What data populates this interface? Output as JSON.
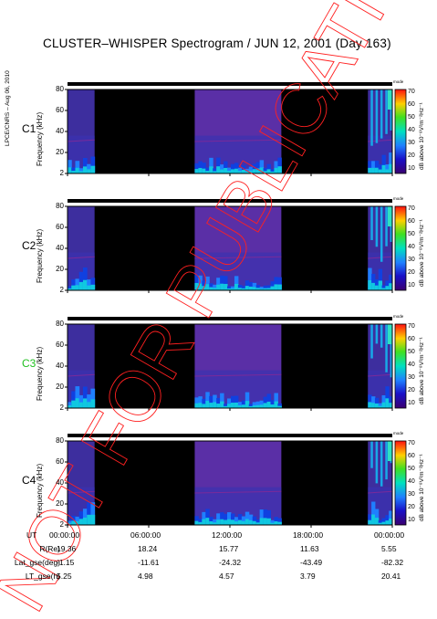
{
  "title": "CLUSTER–WHISPER Spectrogram / JUN 12, 2001 (Day 163)",
  "credit": "LPCE/CNRS – Aug 06, 2010",
  "watermark": "NOT FOR PUBLICATION",
  "colors": {
    "watermark": "#ff2020",
    "c3_label": "#21c021",
    "gap": "#000000"
  },
  "chart_data": {
    "type": "heatmap",
    "panels": [
      {
        "name": "C1",
        "ylabel": "Frequency (kHz)",
        "yticks": [
          "80",
          "60",
          "40",
          "20",
          "2"
        ],
        "ylim": [
          2,
          80
        ],
        "cbar_label": "dB above 10⁻⁸V²m⁻²Hz⁻¹",
        "cbar_ticks": [
          "70",
          "60",
          "50",
          "40",
          "30",
          "20",
          "10"
        ],
        "cbar_range": [
          10,
          70
        ],
        "mode_label": "mode"
      },
      {
        "name": "C2",
        "ylabel": "Frequency (kHz)",
        "yticks": [
          "80",
          "60",
          "40",
          "20",
          "2"
        ],
        "ylim": [
          2,
          80
        ],
        "cbar_label": "dB above 10⁻⁸V²m⁻²Hz⁻¹",
        "cbar_ticks": [
          "70",
          "60",
          "50",
          "40",
          "30",
          "20",
          "10"
        ],
        "cbar_range": [
          10,
          70
        ],
        "mode_label": "mode"
      },
      {
        "name": "C3",
        "ylabel": "Frequency (kHz)",
        "yticks": [
          "80",
          "60",
          "40",
          "20",
          "2"
        ],
        "ylim": [
          2,
          80
        ],
        "cbar_label": "dB above 10⁻⁸V²m⁻²Hz⁻¹",
        "cbar_ticks": [
          "70",
          "60",
          "50",
          "40",
          "30",
          "20",
          "10"
        ],
        "cbar_range": [
          10,
          70
        ],
        "mode_label": "mode"
      },
      {
        "name": "C4",
        "ylabel": "Frequency (kHz)",
        "yticks": [
          "80",
          "60",
          "40",
          "20",
          "2"
        ],
        "ylim": [
          2,
          80
        ],
        "cbar_label": "dB above 10⁻⁸V²m⁻²Hz⁻¹",
        "cbar_ticks": [
          "70",
          "60",
          "50",
          "40",
          "30",
          "20",
          "10"
        ],
        "cbar_range": [
          10,
          70
        ],
        "mode_label": "mode"
      }
    ],
    "x_axis": {
      "label": "UT",
      "ticks": [
        "00:00:00",
        "06:00:00",
        "12:00:00",
        "18:00:00",
        "00:00:00"
      ],
      "range_hours": [
        0,
        24
      ]
    },
    "data_segments_hours": [
      [
        0,
        2.0
      ],
      [
        9.4,
        15.8
      ],
      [
        22.2,
        24
      ]
    ],
    "ephemeris": [
      {
        "label": "R(Re)",
        "values": [
          "19.36",
          "18.24",
          "15.77",
          "11.63",
          "5.55"
        ]
      },
      {
        "label": "Lat_gse(deg)",
        "values": [
          "-1.15",
          "-11.61",
          "-24.32",
          "-43.49",
          "-82.32"
        ]
      },
      {
        "label": "LT_gse(h)",
        "values": [
          "5.25",
          "4.98",
          "4.57",
          "3.79",
          "20.41"
        ]
      }
    ]
  }
}
